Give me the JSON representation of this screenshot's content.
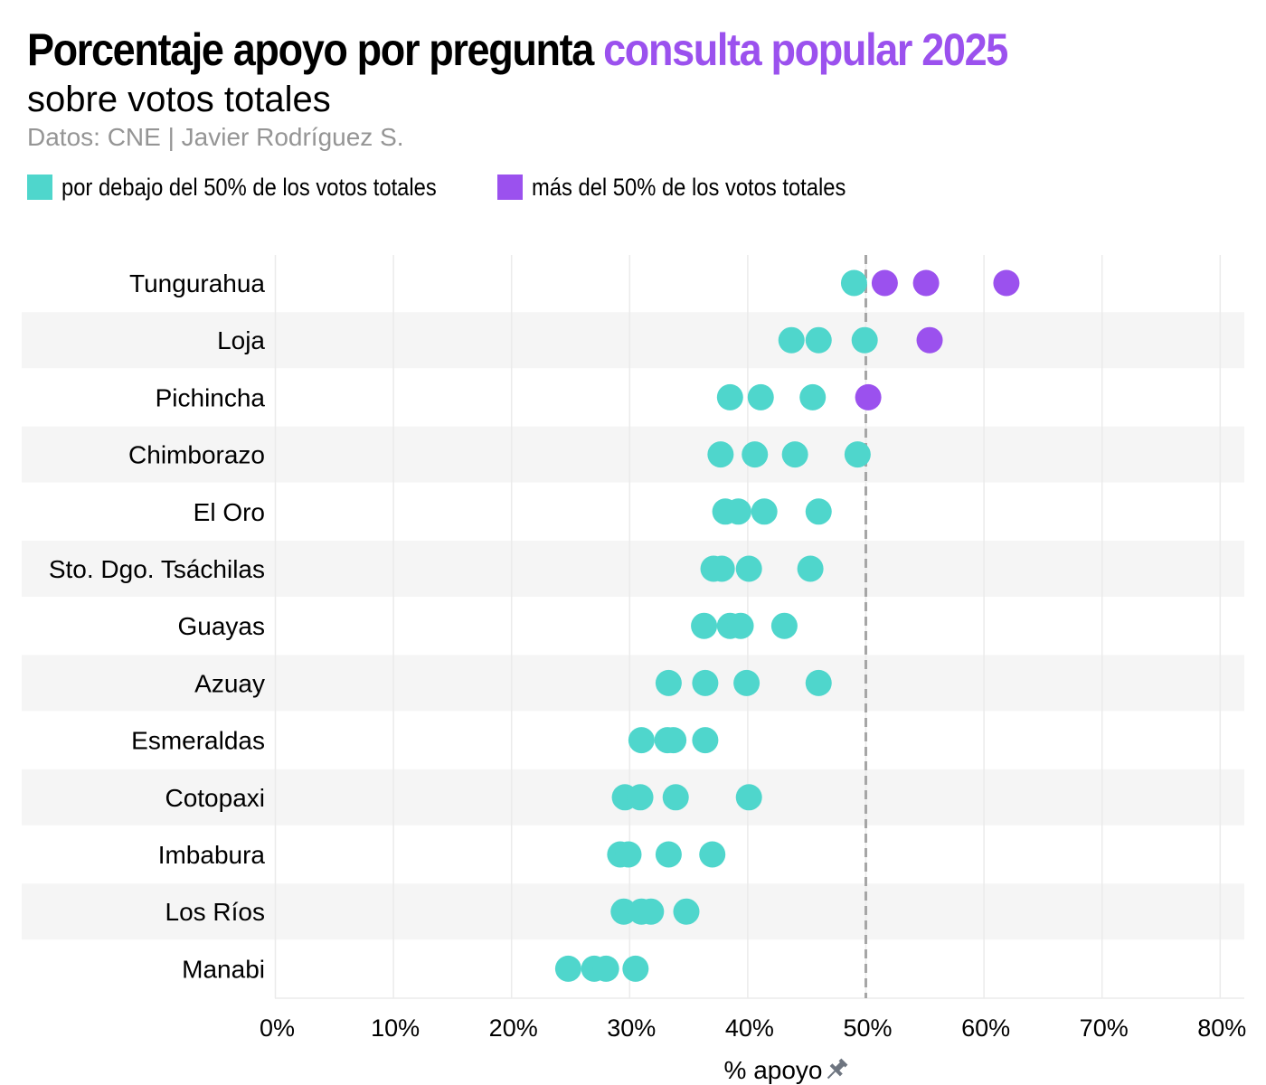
{
  "header": {
    "title_main": "Porcentaje apoyo por pregunta",
    "title_highlight": "consulta popular 2025",
    "subtitle": "sobre votos totales",
    "source": "Datos: CNE | Javier Rodríguez S."
  },
  "legend": [
    {
      "label": "por debajo del 50% de los votos totales",
      "color": "#4FD6CC"
    },
    {
      "label": "más del 50% de los votos totales",
      "color": "#9B51EE"
    }
  ],
  "chart_data": {
    "type": "scatter",
    "title": "Porcentaje apoyo por pregunta consulta popular 2025",
    "subtitle": "sobre votos totales",
    "xlabel": "% apoyo",
    "xlim": [
      -0.02,
      0.82
    ],
    "x_ticks": [
      0,
      0.1,
      0.2,
      0.3,
      0.4,
      0.5,
      0.6,
      0.7,
      0.8
    ],
    "x_tick_labels": [
      "0%",
      "10%",
      "20%",
      "30%",
      "40%",
      "50%",
      "60%",
      "70%",
      "80%"
    ],
    "reference_line": 0.5,
    "threshold": 0.5,
    "colors": {
      "below": "#4FD6CC",
      "above": "#9B51EE",
      "band": "#F5F5F5",
      "grid": "#EBEBEB",
      "reference": "#A6A6A6"
    },
    "categories": [
      "Tungurahua",
      "Loja",
      "Pichincha",
      "Chimborazo",
      "El Oro",
      "Sto. Dgo. Tsáchilas",
      "Guayas",
      "Azuay",
      "Esmeraldas",
      "Cotopaxi",
      "Imbabura",
      "Los Ríos",
      "Manabi"
    ],
    "values": [
      [
        0.49,
        0.516,
        0.551,
        0.619
      ],
      [
        0.437,
        0.46,
        0.499,
        0.554
      ],
      [
        0.385,
        0.411,
        0.455,
        0.502
      ],
      [
        0.377,
        0.406,
        0.44,
        0.493
      ],
      [
        0.381,
        0.392,
        0.414,
        0.46
      ],
      [
        0.371,
        0.378,
        0.401,
        0.453
      ],
      [
        0.363,
        0.385,
        0.394,
        0.431
      ],
      [
        0.333,
        0.364,
        0.399,
        0.46
      ],
      [
        0.31,
        0.332,
        0.337,
        0.364
      ],
      [
        0.296,
        0.309,
        0.339,
        0.401
      ],
      [
        0.292,
        0.299,
        0.333,
        0.37
      ],
      [
        0.295,
        0.31,
        0.318,
        0.348
      ],
      [
        0.248,
        0.27,
        0.28,
        0.305
      ]
    ]
  }
}
